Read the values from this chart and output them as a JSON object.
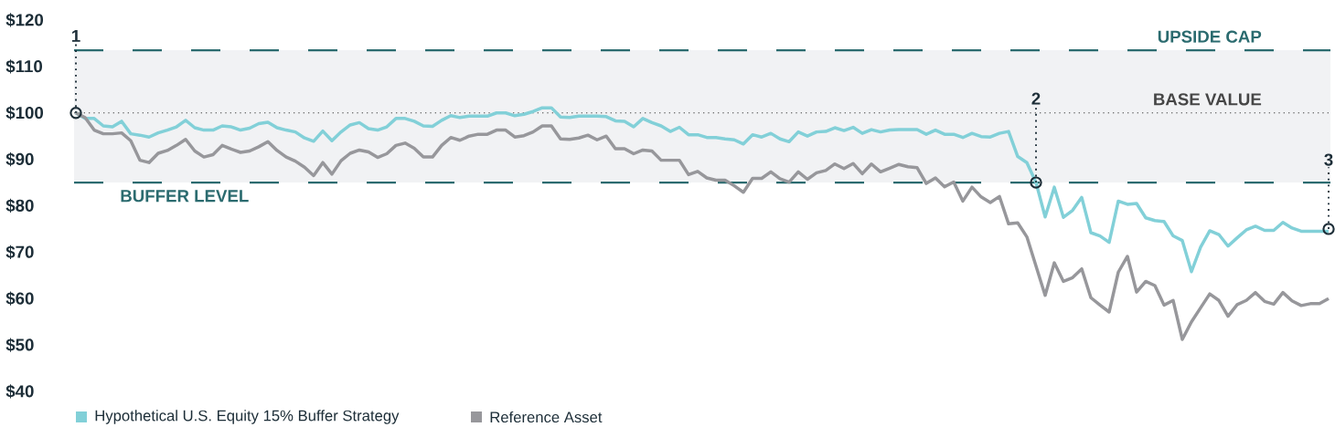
{
  "chart_data": {
    "type": "line",
    "categories": [
      null,
      null,
      null,
      null,
      null,
      null,
      null,
      null,
      null,
      null,
      null,
      null,
      null,
      null,
      null,
      null,
      null,
      null,
      null,
      null,
      null,
      null,
      null,
      null,
      null,
      null,
      null,
      null,
      null,
      null,
      null,
      null,
      null,
      null,
      null,
      null,
      null,
      null,
      null,
      null,
      null,
      null,
      null,
      null,
      null,
      null,
      null,
      null,
      null,
      null,
      null,
      null,
      null,
      null,
      null,
      null,
      null,
      null,
      null,
      null,
      null,
      null,
      null,
      null,
      null,
      null,
      null,
      null,
      null,
      null,
      null,
      null,
      null,
      null,
      null,
      null,
      null,
      null,
      null,
      null,
      null,
      null,
      null,
      null,
      null,
      null,
      null,
      null,
      null,
      null,
      null,
      null,
      null,
      null,
      null,
      null,
      null,
      null,
      null,
      null,
      null,
      null,
      null,
      null,
      null,
      null,
      null,
      null,
      null,
      null,
      null,
      null,
      null,
      null,
      null,
      null,
      null,
      null,
      null,
      null,
      null,
      null,
      null,
      null,
      null,
      null,
      null,
      null,
      null,
      null,
      null,
      null,
      null,
      null,
      null,
      null,
      null,
      null
    ],
    "series": [
      {
        "name": "Hypothetical U.S. Equity 15% Buffer Strategy",
        "color": "#82d0d8",
        "values": [
          100,
          98.8,
          98.8,
          97.2,
          97,
          98.2,
          95.5,
          95.2,
          94.8,
          95.7,
          96.3,
          97,
          98.4,
          96.8,
          96.3,
          96.3,
          97.2,
          97,
          96.3,
          96.7,
          97.7,
          98,
          96.8,
          96.3,
          95.9,
          94.6,
          93.9,
          96.1,
          94,
          95.9,
          97.4,
          97.9,
          96.6,
          96.3,
          97,
          98.8,
          98.8,
          98.2,
          97.2,
          97.1,
          98.4,
          99.4,
          99,
          99.3,
          99.3,
          99.3,
          100,
          100,
          99.4,
          99.7,
          100.3,
          101.1,
          101.1,
          99.1,
          99,
          99.3,
          99.3,
          99.3,
          99.2,
          98.3,
          98.2,
          97,
          98.8,
          97.9,
          97.2,
          96,
          96.9,
          95.3,
          95.3,
          94.7,
          94.7,
          94.4,
          94.2,
          93.3,
          95.3,
          94.8,
          95.6,
          94.4,
          93.8,
          95.9,
          95,
          95.9,
          96,
          96.8,
          96.2,
          96.9,
          95.6,
          96.4,
          95.9,
          96.3,
          96.4,
          96.4,
          96.4,
          95.4,
          96.3,
          95.4,
          95.4,
          94.7,
          95.6,
          94.9,
          94.8,
          95.6,
          96,
          90.6,
          89.3,
          85,
          77.6,
          84,
          77.5,
          79,
          81.8,
          74.2,
          73.5,
          72.1,
          81,
          80.3,
          80.5,
          77.4,
          76.8,
          76.6,
          73.5,
          72.5,
          65.8,
          71.1,
          74.6,
          73.8,
          71.3,
          73.1,
          74.8,
          75.6,
          74.7,
          74.7,
          76.4,
          75.2,
          74.5,
          74.5,
          74.5,
          74.5
        ]
      },
      {
        "name": "Reference Asset",
        "color": "#97979b",
        "values": [
          100,
          99,
          96.3,
          95.5,
          95.5,
          95.7,
          94,
          89.8,
          89.3,
          91.3,
          91.9,
          93,
          94.3,
          91.8,
          90.5,
          91,
          93,
          92.2,
          91.5,
          91.8,
          92.7,
          93.8,
          91.9,
          90.5,
          89.6,
          88.3,
          86.5,
          89.3,
          86.8,
          89.7,
          91.3,
          92,
          91.6,
          90.4,
          91.2,
          93,
          93.5,
          92.4,
          90.5,
          90.5,
          93,
          94.7,
          94.1,
          95,
          95.4,
          95.4,
          96.3,
          96.3,
          94.8,
          95.1,
          95.9,
          97.2,
          97.2,
          94.4,
          94.3,
          94.6,
          95.2,
          94.2,
          95,
          92.3,
          92.3,
          91.2,
          92,
          91.8,
          89.8,
          89.8,
          89.8,
          86.7,
          87.4,
          86,
          85.5,
          85.5,
          84.3,
          82.9,
          85.9,
          85.9,
          87.3,
          85.8,
          85.1,
          87.3,
          85.7,
          87.1,
          87.6,
          89,
          88,
          89.1,
          86.9,
          89,
          87.3,
          88.1,
          88.9,
          88.4,
          88.2,
          84.8,
          86,
          84.1,
          85.1,
          81,
          84,
          81.9,
          80.7,
          82,
          76.1,
          76.3,
          73.3,
          67,
          60.7,
          67.7,
          63.7,
          64.5,
          66.4,
          60.2,
          58.6,
          57.1,
          65.7,
          69.1,
          61.4,
          63.7,
          62.8,
          58.6,
          59.6,
          51.2,
          55,
          58,
          61,
          59.6,
          56.2,
          58.7,
          59.6,
          61.3,
          59.4,
          58.8,
          61.3,
          59.5,
          58.5,
          58.9,
          58.9,
          60
        ]
      },
      {
        "type": "scatter",
        "marker": "circle",
        "color": "#1d2e38",
        "values": [
          100,
          null,
          null,
          null,
          null,
          null,
          null,
          null,
          null,
          null,
          null,
          null,
          null,
          null,
          null,
          null,
          null,
          null,
          null,
          null,
          null,
          null,
          null,
          null,
          null,
          null,
          null,
          null,
          null,
          null,
          null,
          null,
          null,
          null,
          null,
          null,
          null,
          null,
          null,
          null,
          null,
          null,
          null,
          null,
          null,
          null,
          null,
          null,
          null,
          null,
          null,
          null,
          null,
          null,
          null,
          null,
          null,
          null,
          null,
          null,
          null,
          null,
          null,
          null,
          null,
          null,
          null,
          null,
          null,
          null,
          null,
          null,
          null,
          null,
          null,
          null,
          null,
          null,
          null,
          null,
          null,
          null,
          null,
          null,
          null,
          null,
          null,
          null,
          null,
          null,
          null,
          null,
          null,
          null,
          null,
          null,
          null,
          null,
          null,
          null,
          null,
          null,
          null,
          null,
          null,
          85,
          null,
          null,
          null,
          null,
          null,
          null,
          null,
          null,
          null,
          null,
          null,
          null,
          null,
          null,
          null,
          null,
          null,
          null,
          null,
          null,
          null,
          null,
          null,
          null,
          null,
          null,
          null,
          null,
          null,
          null,
          null,
          75
        ]
      }
    ],
    "ylim": [
      40,
      120
    ],
    "yticks": [
      {
        "value": 40,
        "label": "$40"
      },
      {
        "value": 50,
        "label": "$50"
      },
      {
        "value": 60,
        "label": "$60"
      },
      {
        "value": 70,
        "label": "$70"
      },
      {
        "value": 80,
        "label": "$80"
      },
      {
        "value": 90,
        "label": "$90"
      },
      {
        "value": 100,
        "label": "$100"
      },
      {
        "value": 110,
        "label": "$110"
      },
      {
        "value": 120,
        "label": "$120"
      }
    ],
    "tick_labels": "y",
    "legend": "bottom",
    "marker": "none",
    "line_style": "solid",
    "bands": [
      {
        "axis": "y",
        "from": 85,
        "to": 113.5,
        "color": "#f1f2f4"
      }
    ],
    "ref_lines": [
      {
        "axis": "y",
        "value": 113.5,
        "label": "UPSIDE CAP",
        "color": "#2b6b6f",
        "line_style": "dashed"
      },
      {
        "axis": "y",
        "value": 100,
        "label": "BASE VALUE",
        "color": "#464646",
        "line_style": "dotted"
      },
      {
        "axis": "y",
        "value": 85,
        "label": "BUFFER LEVEL",
        "color": "#2b6b6f",
        "line_style": "dashed"
      }
    ],
    "annotations": [
      "1",
      "2",
      "3"
    ]
  }
}
